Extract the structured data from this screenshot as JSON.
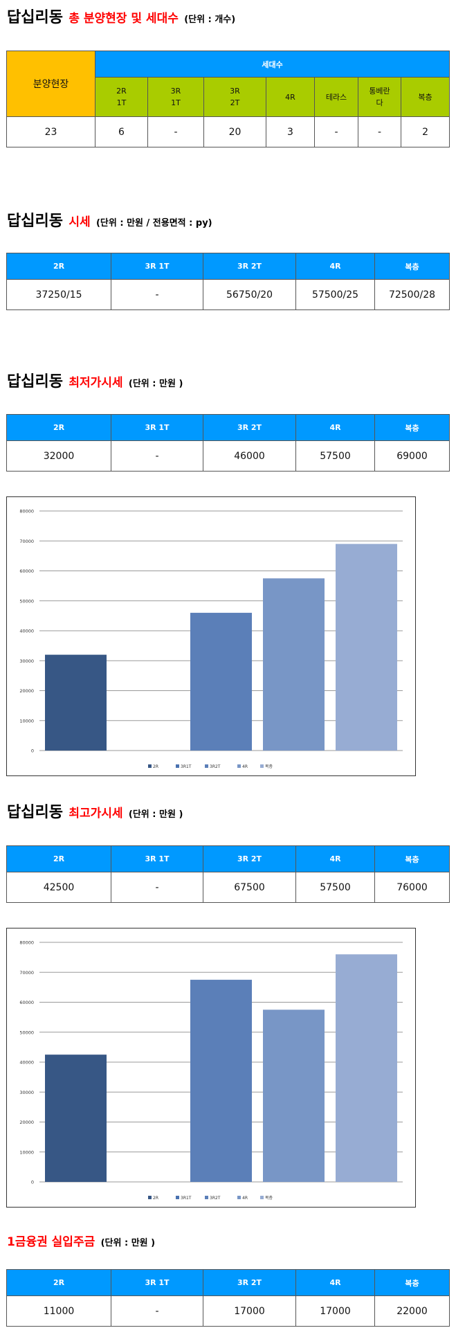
{
  "sections": {
    "units": {
      "title_main": "답십리동",
      "title_red": "총 분양현장 및 세대수",
      "title_unit": "(단위 : 개수)",
      "left_header": "분양현장",
      "group_header": "세대수",
      "columns": [
        "2R\n1T",
        "3R\n1T",
        "3R\n2T",
        "4R",
        "테라스",
        "통베란\n다",
        "복층"
      ],
      "site_count": "23",
      "values": [
        "6",
        "-",
        "20",
        "3",
        "-",
        "-",
        "2"
      ]
    },
    "market": {
      "title_main": "답십리동",
      "title_red": "시세",
      "title_unit": "(단위 : 만원 / 전용면적 : py)",
      "columns": [
        "2R",
        "3R 1T",
        "3R 2T",
        "4R",
        "복층"
      ],
      "values": [
        "37250/15",
        "-",
        "56750/20",
        "57500/25",
        "72500/28"
      ]
    },
    "lowest": {
      "title_main": "답십리동",
      "title_red": "최저가시세",
      "title_unit": "(단위 : 만원 )",
      "columns": [
        "2R",
        "3R 1T",
        "3R 2T",
        "4R",
        "복층"
      ],
      "values": [
        "32000",
        "-",
        "46000",
        "57500",
        "69000"
      ]
    },
    "highest": {
      "title_main": "답십리동",
      "title_red": "최고가시세",
      "title_unit": "(단위 : 만원 )",
      "columns": [
        "2R",
        "3R 1T",
        "3R 2T",
        "4R",
        "복층"
      ],
      "values": [
        "42500",
        "-",
        "67500",
        "57500",
        "76000"
      ]
    },
    "loan": {
      "title_red": "1금융권 실입주금",
      "title_unit": "(단위 : 만원 )",
      "columns": [
        "2R",
        "3R 1T",
        "3R 2T",
        "4R",
        "복층"
      ],
      "values": [
        "11000",
        "-",
        "17000",
        "17000",
        "22000"
      ]
    }
  },
  "chart_data": [
    {
      "type": "bar",
      "categories": [
        "2R",
        "3R1T",
        "3R2T",
        "4R",
        "복층"
      ],
      "series": [
        {
          "values": [
            32000,
            0,
            46000,
            57500,
            69000
          ]
        }
      ],
      "colors": [
        "#375785",
        "#4a72b0",
        "#5b7fb8",
        "#7896c6",
        "#97acd3"
      ],
      "yticks": [
        0,
        10000,
        20000,
        30000,
        40000,
        50000,
        60000,
        70000,
        80000
      ],
      "ylim": [
        0,
        80000
      ],
      "legend": [
        "2R",
        "3R1T",
        "3R2T",
        "4R",
        "복층"
      ],
      "legend_position": "bottom",
      "grid": true
    },
    {
      "type": "bar",
      "categories": [
        "2R",
        "3R1T",
        "3R2T",
        "4R",
        "복층"
      ],
      "series": [
        {
          "values": [
            42500,
            0,
            67500,
            57500,
            76000
          ]
        }
      ],
      "colors": [
        "#375785",
        "#4a72b0",
        "#5b7fb8",
        "#7896c6",
        "#97acd3"
      ],
      "yticks": [
        0,
        10000,
        20000,
        30000,
        40000,
        50000,
        60000,
        70000,
        80000
      ],
      "ylim": [
        0,
        80000
      ],
      "legend": [
        "2R",
        "3R1T",
        "3R2T",
        "4R",
        "복층"
      ],
      "legend_position": "bottom",
      "grid": true
    }
  ]
}
